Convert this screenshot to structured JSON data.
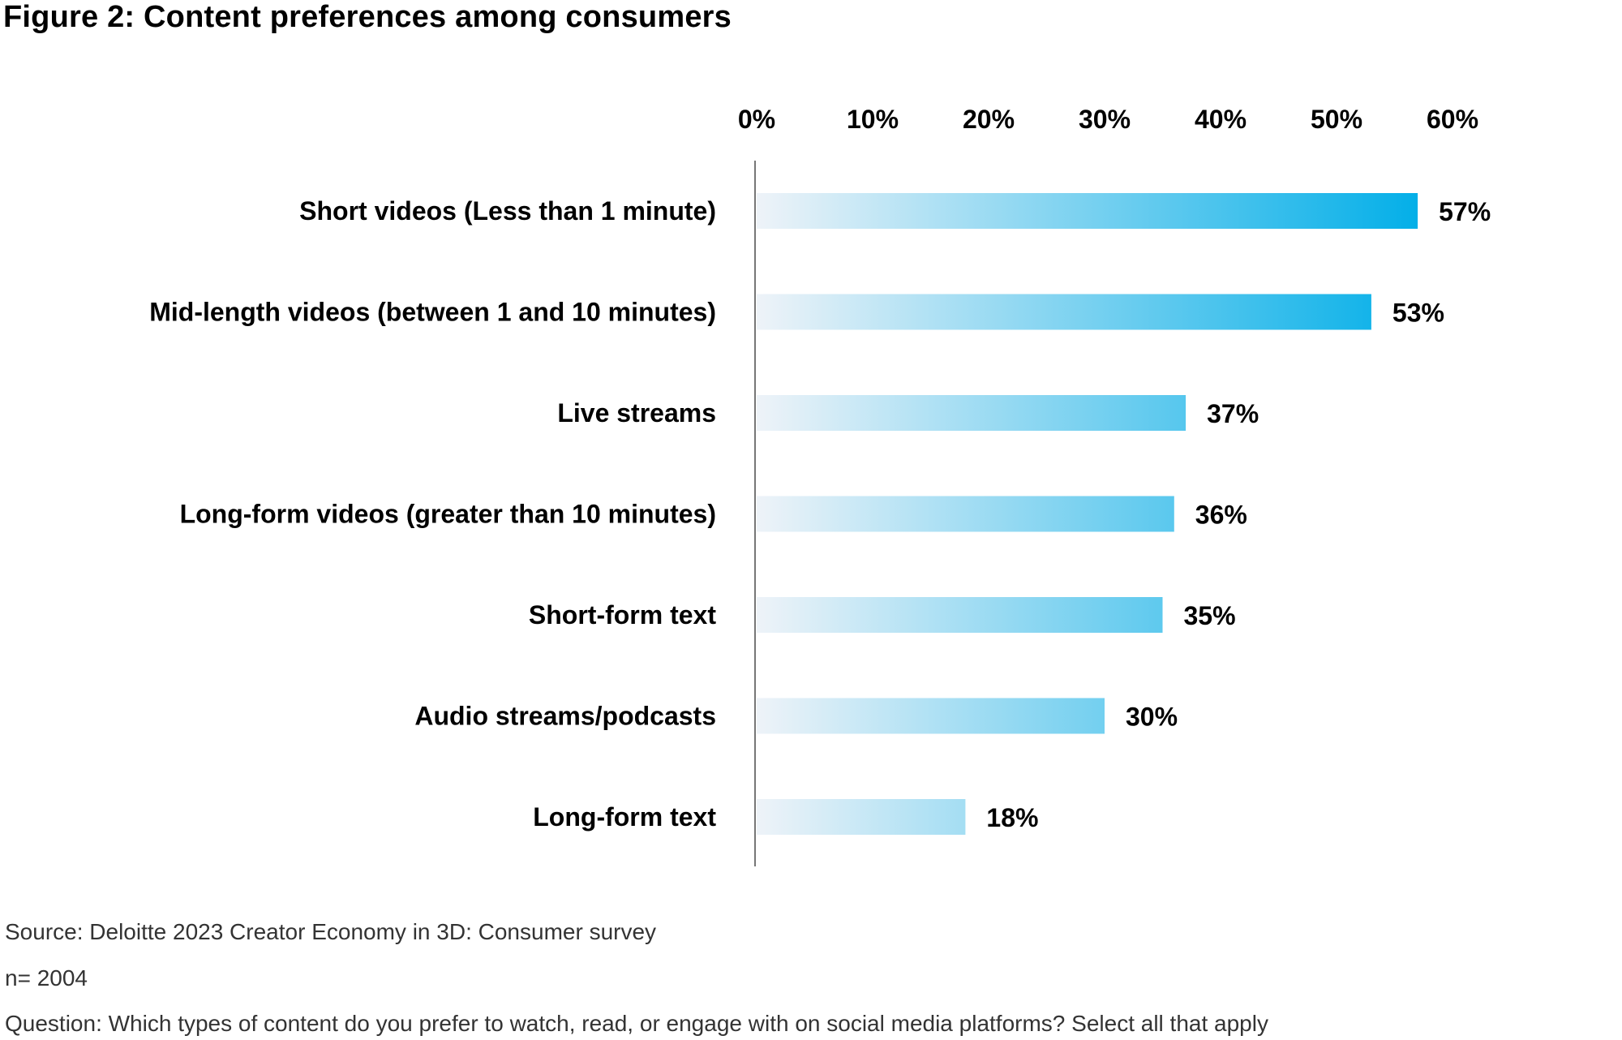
{
  "title": "Figure 2: Content preferences among consumers",
  "colors": {
    "bar_start": "#eef3f8",
    "bar_end": "#00aee8",
    "axis": "#777777"
  },
  "chart_data": {
    "type": "bar",
    "orientation": "horizontal",
    "title": "Figure 2: Content preferences among consumers",
    "xlabel": "",
    "ylabel": "",
    "xlim": [
      0,
      60
    ],
    "x_ticks": [
      "0%",
      "10%",
      "20%",
      "30%",
      "40%",
      "50%",
      "60%"
    ],
    "x_tick_values": [
      0,
      10,
      20,
      30,
      40,
      50,
      60
    ],
    "axis_position": "top",
    "grid": false,
    "categories": [
      "Short videos (Less than 1 minute)",
      "Mid-length videos (between 1 and 10 minutes)",
      "Live streams",
      "Long-form videos (greater than 10 minutes)",
      "Short-form text",
      "Audio streams/podcasts",
      "Long-form text"
    ],
    "values": [
      57,
      53,
      37,
      36,
      35,
      30,
      18
    ],
    "value_labels": [
      "57%",
      "53%",
      "37%",
      "36%",
      "35%",
      "30%",
      "18%"
    ]
  },
  "footer": {
    "source": "Source: Deloitte 2023 Creator Economy in 3D: Consumer survey",
    "sample": "n= 2004",
    "question": "Question: Which types of content do you prefer to watch, read, or engage with on social media platforms? Select all that apply"
  }
}
